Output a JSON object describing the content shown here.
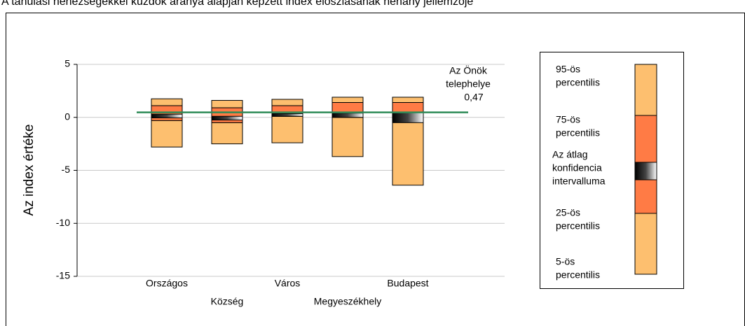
{
  "chart_data": {
    "type": "percentile-box",
    "title": "A tanulási nehézségekkel küzdők aránya alapján képzett index eloszlásának néhány jellemzője",
    "y_label": "Az index értéke",
    "categories": [
      "Országos",
      "Község",
      "Város",
      "Megyeszékhely",
      "Budapest"
    ],
    "p5": [
      -2.8,
      -2.5,
      -2.4,
      -3.7,
      -6.4
    ],
    "p25": [
      -0.3,
      -0.5,
      0.1,
      0.0,
      -0.4
    ],
    "ci_low": [
      -0.05,
      -0.25,
      0.1,
      0.0,
      -0.5
    ],
    "ci_high": [
      0.3,
      0.1,
      0.35,
      0.4,
      0.5
    ],
    "p75": [
      1.1,
      0.9,
      1.1,
      1.4,
      1.4
    ],
    "p95": [
      1.75,
      1.6,
      1.7,
      1.9,
      1.9
    ],
    "outer_color": "#fdbf6f",
    "inner_color": "#ff7b45",
    "ci_color": "#222222",
    "reference": {
      "name": [
        "Az Önök",
        "telephelye"
      ],
      "value": 0.47,
      "value_label": "0,47",
      "color": "#2e8b57"
    },
    "ylim": [
      -15,
      5
    ],
    "yticks": [
      5,
      0,
      -5,
      -10,
      -15
    ],
    "grid": true,
    "legend": [
      [
        "95-ös",
        "percentilis"
      ],
      [
        "75-ös",
        "percentilis"
      ],
      [
        "Az átlag",
        "konfidencia",
        "intervalluma"
      ],
      [
        "25-ös",
        "percentilis"
      ],
      [
        "5-ös",
        "percentilis"
      ]
    ]
  }
}
